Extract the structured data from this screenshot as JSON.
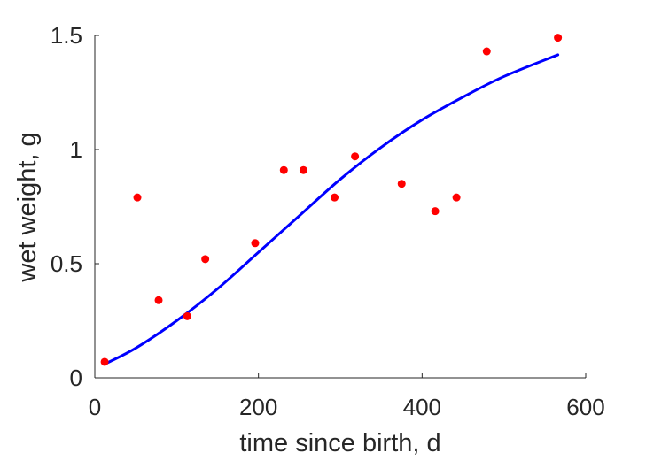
{
  "chart_data": {
    "type": "scatter",
    "title": "",
    "xlabel": "time since birth, d",
    "ylabel": "wet weight, g",
    "xlim": [
      0,
      600
    ],
    "ylim": [
      0,
      1.5
    ],
    "xticks": [
      0,
      200,
      400,
      600
    ],
    "xtick_labels": [
      "0",
      "200",
      "400",
      "600"
    ],
    "yticks": [
      0,
      0.5,
      1,
      1.5
    ],
    "ytick_labels": [
      "0",
      "0.5",
      "1",
      "1.5"
    ],
    "grid": false,
    "legend": "none",
    "series": [
      {
        "kind": "scatter",
        "color": "#ff0000",
        "points": [
          {
            "x": 12,
            "y": 0.07
          },
          {
            "x": 52,
            "y": 0.79
          },
          {
            "x": 78,
            "y": 0.34
          },
          {
            "x": 113,
            "y": 0.27
          },
          {
            "x": 135,
            "y": 0.52
          },
          {
            "x": 196,
            "y": 0.59
          },
          {
            "x": 231,
            "y": 0.91
          },
          {
            "x": 255,
            "y": 0.91
          },
          {
            "x": 293,
            "y": 0.79
          },
          {
            "x": 318,
            "y": 0.97
          },
          {
            "x": 375,
            "y": 0.85
          },
          {
            "x": 416,
            "y": 0.73
          },
          {
            "x": 442,
            "y": 0.79
          },
          {
            "x": 479,
            "y": 1.43
          },
          {
            "x": 566,
            "y": 1.49
          }
        ]
      },
      {
        "kind": "line",
        "color": "#0000ff",
        "points": [
          {
            "x": 12,
            "y": 0.06
          },
          {
            "x": 50,
            "y": 0.13
          },
          {
            "x": 100,
            "y": 0.25
          },
          {
            "x": 150,
            "y": 0.39
          },
          {
            "x": 200,
            "y": 0.55
          },
          {
            "x": 250,
            "y": 0.71
          },
          {
            "x": 300,
            "y": 0.87
          },
          {
            "x": 350,
            "y": 1.01
          },
          {
            "x": 400,
            "y": 1.13
          },
          {
            "x": 450,
            "y": 1.23
          },
          {
            "x": 500,
            "y": 1.32
          },
          {
            "x": 566,
            "y": 1.415
          }
        ]
      }
    ]
  }
}
